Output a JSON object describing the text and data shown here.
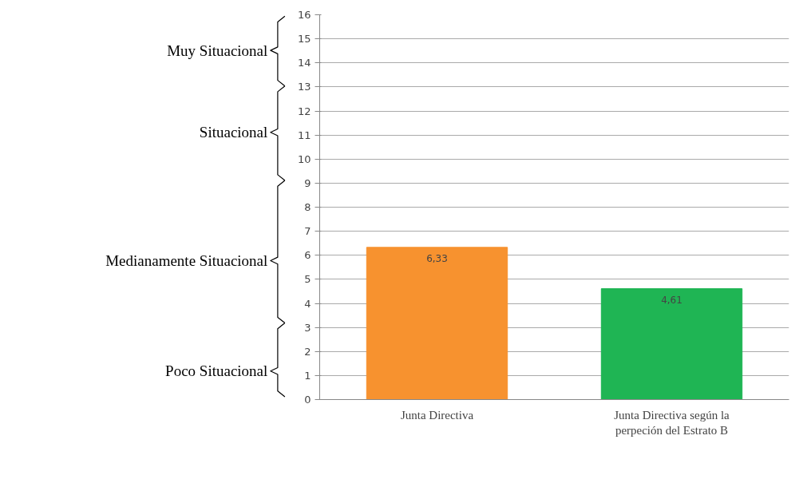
{
  "chart_data": {
    "type": "bar",
    "categories": [
      "Junta Directiva",
      "Junta Directiva según la perpeción del Estrato B"
    ],
    "values": [
      6.33,
      4.61
    ],
    "colors": [
      "#f7922f",
      "#1fb554"
    ],
    "value_labels": [
      "6,33",
      "4,61"
    ],
    "ylim": [
      0,
      16
    ],
    "yticks": [
      0,
      1,
      2,
      3,
      4,
      5,
      6,
      7,
      8,
      9,
      10,
      11,
      12,
      13,
      14,
      15,
      16
    ],
    "grid": "y",
    "annotations": [
      "Muy Situacional",
      "Situacional",
      "Medianamente Situacional",
      "Poco Situacional"
    ]
  }
}
